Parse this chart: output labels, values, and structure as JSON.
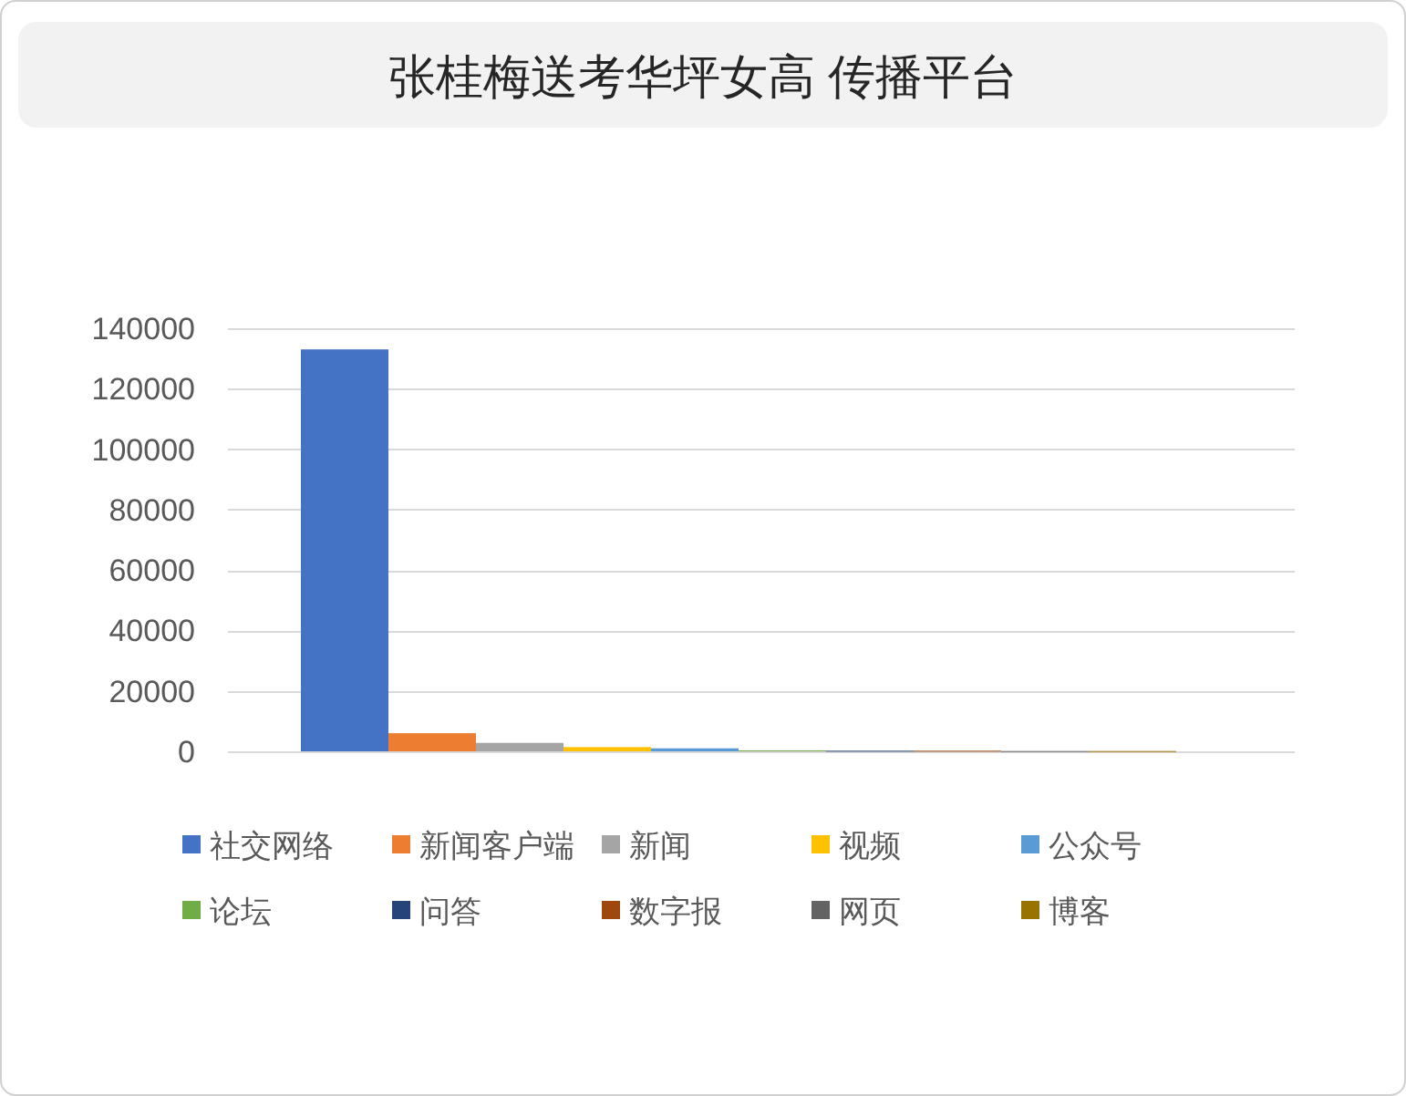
{
  "chart_data": {
    "type": "bar",
    "title": "张桂梅送考华坪女高 传播平台",
    "categories": [
      null
    ],
    "series": [
      {
        "name": "社交网络",
        "color": "#4472c4",
        "values": [
          133000
        ]
      },
      {
        "name": "新闻客户端",
        "color": "#ed7d31",
        "values": [
          6000
        ]
      },
      {
        "name": "新闻",
        "color": "#a5a5a5",
        "values": [
          2800
        ]
      },
      {
        "name": "视频",
        "color": "#ffc000",
        "values": [
          1400
        ]
      },
      {
        "name": "公众号",
        "color": "#5b9bd5",
        "values": [
          1000
        ]
      },
      {
        "name": "论坛",
        "color": "#70ad47",
        "values": [
          300
        ]
      },
      {
        "name": "问答",
        "color": "#264478",
        "values": [
          200
        ]
      },
      {
        "name": "数字报",
        "color": "#9e480e",
        "values": [
          200
        ]
      },
      {
        "name": "网页",
        "color": "#636363",
        "values": [
          100
        ]
      },
      {
        "name": "博客",
        "color": "#997300",
        "values": [
          100
        ]
      }
    ],
    "ylim": [
      0,
      140000
    ],
    "yticks": [
      0,
      20000,
      40000,
      60000,
      80000,
      100000,
      120000,
      140000
    ],
    "grid": "y",
    "legend": "bottom",
    "tick_labels": "y"
  }
}
